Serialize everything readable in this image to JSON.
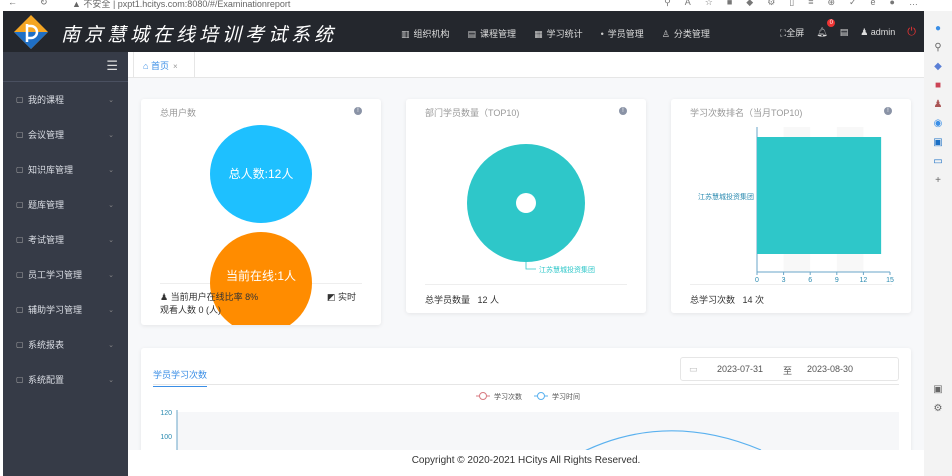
{
  "browser": {
    "security": "不安全",
    "url": "pxpt1.hcitys.com:8080/#/Examinationreport"
  },
  "header": {
    "title": "南京慧城在线培训考试系统",
    "nav": [
      {
        "label": "组织机构",
        "icon": "book-icon"
      },
      {
        "label": "课程管理",
        "icon": "doc-icon"
      },
      {
        "label": "学习统计",
        "icon": "calc-icon"
      },
      {
        "label": "学员管理",
        "icon": "user-icon"
      },
      {
        "label": "分类管理",
        "icon": "person-icon"
      }
    ],
    "fullscreen": "全屏",
    "notifications": "0",
    "user": "admin"
  },
  "sidebar": {
    "items": [
      {
        "label": "我的课程",
        "icon": "book-icon"
      },
      {
        "label": "会议管理",
        "icon": "heart-icon"
      },
      {
        "label": "知识库管理",
        "icon": "box-icon"
      },
      {
        "label": "题库管理",
        "icon": "list-icon"
      },
      {
        "label": "考试管理",
        "icon": "user-icon"
      },
      {
        "label": "员工学习管理",
        "icon": "id-card-icon"
      },
      {
        "label": "辅助学习管理",
        "icon": "cap-icon"
      },
      {
        "label": "系统报表",
        "icon": "report-icon"
      },
      {
        "label": "系统配置",
        "icon": "hourglass-icon"
      }
    ]
  },
  "tabs": [
    {
      "label": "首页"
    }
  ],
  "cards": {
    "users": {
      "title": "总用户数",
      "total": "总人数:12人",
      "online": "当前在线:1人",
      "rate": "当前用户在线比率 8%",
      "realtime": "实时",
      "viewers": "观看人数 0 (人)",
      "colors": {
        "total": "#1ec0ff",
        "online": "#ff8c00"
      }
    },
    "dept": {
      "title": "部门学员数量（TOP10)",
      "legend": "江苏慧城投资集团",
      "footer": "总学员数量",
      "footer_value": "12 人",
      "color": "#2ec7c9"
    },
    "rank": {
      "title": "学习次数排名（当月TOP10)",
      "footer": "总学习次数",
      "footer_value": "14 次"
    }
  },
  "chart_data": [
    {
      "type": "pie",
      "title": "部门学员数量（TOP10)",
      "labels": [
        "江苏慧城投资集团"
      ],
      "values": [
        12
      ],
      "colors": [
        "#2ec7c9"
      ]
    },
    {
      "type": "bar",
      "orientation": "horizontal",
      "title": "学习次数排名（当月TOP10)",
      "categories": [
        "江苏慧城投资集团"
      ],
      "values": [
        14
      ],
      "xlim": [
        0,
        15
      ],
      "xticks": [
        "0",
        "3",
        "6",
        "9",
        "12",
        "15"
      ],
      "color": "#2ec7c9"
    },
    {
      "type": "line",
      "title": "学员学习次数",
      "series": [
        {
          "name": "学习次数",
          "color": "#d87a80"
        },
        {
          "name": "学习时间",
          "color": "#5ab1ef"
        }
      ],
      "yticks": [
        "120",
        "100"
      ]
    }
  ],
  "bottom": {
    "tab": "学员学习次数",
    "date_start": "2023-07-31",
    "date_sep": "至",
    "date_end": "2023-08-30"
  },
  "footer": "Copyright © 2020-2021 HCitys All Rights Reserved."
}
